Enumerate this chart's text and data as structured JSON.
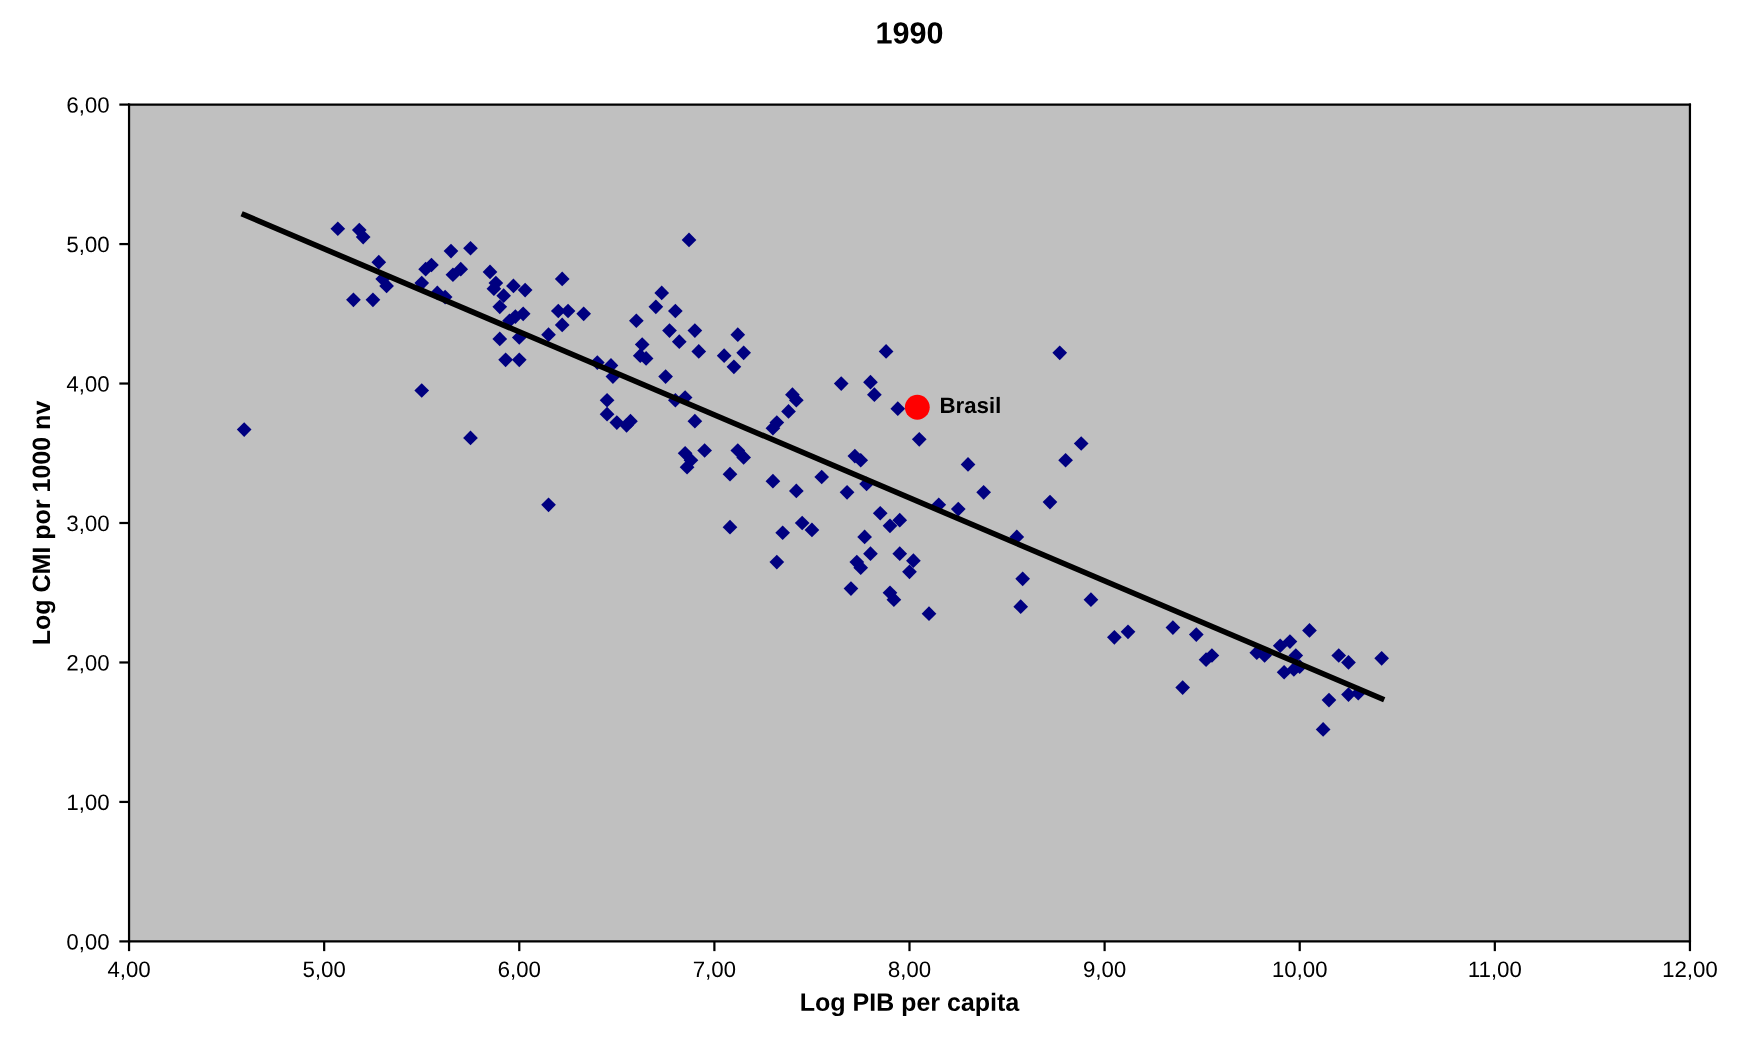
{
  "chart_data": {
    "type": "scatter",
    "title": "1990",
    "xlabel": "Log PIB per capita",
    "ylabel": "Log CMI por 1000 nv",
    "xlim": [
      4,
      12
    ],
    "ylim": [
      0,
      6
    ],
    "xticks": [
      {
        "value": 4,
        "label": "4,00"
      },
      {
        "value": 5,
        "label": "5,00"
      },
      {
        "value": 6,
        "label": "6,00"
      },
      {
        "value": 7,
        "label": "7,00"
      },
      {
        "value": 8,
        "label": "8,00"
      },
      {
        "value": 9,
        "label": "9,00"
      },
      {
        "value": 10,
        "label": "10,00"
      },
      {
        "value": 11,
        "label": "11,00"
      },
      {
        "value": 12,
        "label": "12,00"
      }
    ],
    "yticks": [
      {
        "value": 0,
        "label": "0,00"
      },
      {
        "value": 1,
        "label": "1,00"
      },
      {
        "value": 2,
        "label": "2,00"
      },
      {
        "value": 3,
        "label": "3,00"
      },
      {
        "value": 4,
        "label": "4,00"
      },
      {
        "value": 5,
        "label": "5,00"
      },
      {
        "value": 6,
        "label": "6,00"
      }
    ],
    "grid": false,
    "legend": false,
    "series": [
      {
        "marker": "diamond",
        "color": "#000080",
        "x": [
          4.59,
          5.07,
          5.15,
          5.18,
          5.2,
          5.25,
          5.28,
          5.3,
          5.32,
          5.5,
          5.5,
          5.52,
          5.55,
          5.58,
          5.62,
          5.65,
          5.66,
          5.7,
          5.75,
          5.75,
          5.85,
          5.87,
          5.88,
          5.9,
          5.9,
          5.92,
          5.93,
          5.95,
          5.97,
          5.98,
          6.0,
          6.0,
          6.02,
          6.03,
          6.15,
          6.15,
          6.2,
          6.22,
          6.22,
          6.25,
          6.33,
          6.4,
          6.45,
          6.45,
          6.47,
          6.48,
          6.5,
          6.55,
          6.57,
          6.6,
          6.62,
          6.63,
          6.65,
          6.7,
          6.73,
          6.75,
          6.77,
          6.8,
          6.8,
          6.82,
          6.85,
          6.85,
          6.86,
          6.87,
          6.88,
          6.9,
          6.9,
          6.92,
          6.95,
          7.05,
          7.08,
          7.08,
          7.1,
          7.12,
          7.12,
          7.15,
          7.15,
          7.3,
          7.3,
          7.32,
          7.32,
          7.35,
          7.38,
          7.4,
          7.42,
          7.42,
          7.45,
          7.5,
          7.55,
          7.65,
          7.68,
          7.7,
          7.72,
          7.73,
          7.75,
          7.75,
          7.77,
          7.78,
          7.8,
          7.82,
          7.85,
          7.88,
          7.9,
          7.9,
          7.92,
          7.95,
          7.95,
          8.0,
          8.02,
          8.05,
          8.1,
          8.15,
          8.25,
          8.3,
          8.38,
          8.55,
          8.57,
          8.58,
          8.72,
          8.77,
          8.8,
          8.88,
          8.93,
          9.05,
          9.12,
          9.35,
          9.4,
          9.47,
          9.52,
          9.55,
          9.78,
          9.82,
          9.9,
          9.92,
          9.95,
          9.97,
          9.98,
          10.0,
          10.05,
          10.12,
          10.15,
          10.2,
          10.25,
          10.25,
          10.3,
          10.42,
          7.8,
          7.94
        ],
        "values": [
          3.67,
          5.11,
          4.6,
          5.1,
          5.05,
          4.6,
          4.87,
          4.75,
          4.7,
          3.95,
          4.72,
          4.82,
          4.85,
          4.65,
          4.62,
          4.95,
          4.78,
          4.82,
          4.97,
          3.61,
          4.8,
          4.68,
          4.72,
          4.55,
          4.32,
          4.63,
          4.17,
          4.45,
          4.7,
          4.48,
          4.17,
          4.33,
          4.5,
          4.67,
          3.13,
          4.35,
          4.52,
          4.75,
          4.42,
          4.52,
          4.5,
          4.15,
          3.78,
          3.88,
          4.13,
          4.05,
          3.72,
          3.7,
          3.73,
          4.45,
          4.2,
          4.28,
          4.18,
          4.55,
          4.65,
          4.05,
          4.38,
          3.88,
          4.52,
          4.3,
          3.9,
          3.5,
          3.4,
          5.03,
          3.45,
          4.38,
          3.73,
          4.23,
          3.52,
          4.2,
          3.35,
          2.97,
          4.12,
          4.35,
          3.52,
          4.22,
          3.47,
          3.3,
          3.68,
          3.72,
          2.72,
          2.93,
          3.8,
          3.92,
          3.88,
          3.23,
          3.0,
          2.95,
          3.33,
          4.0,
          3.22,
          2.53,
          3.48,
          2.72,
          2.68,
          3.45,
          2.9,
          3.28,
          2.78,
          3.92,
          3.07,
          4.23,
          2.98,
          2.5,
          2.45,
          2.78,
          3.02,
          2.65,
          2.73,
          3.6,
          2.35,
          3.13,
          3.1,
          3.42,
          3.22,
          2.9,
          2.4,
          2.6,
          3.15,
          4.22,
          3.45,
          3.57,
          2.45,
          2.18,
          2.22,
          2.25,
          1.82,
          2.2,
          2.02,
          2.05,
          2.07,
          2.05,
          2.12,
          1.93,
          2.15,
          1.95,
          2.05,
          1.97,
          2.23,
          1.52,
          1.73,
          2.05,
          2.0,
          1.77,
          1.78,
          2.03,
          4.01,
          3.82
        ]
      },
      {
        "type": "line",
        "marker": "none",
        "line_style": "solid",
        "color": "#000000",
        "x": [
          4.59,
          10.42
        ],
        "values": [
          5.21,
          1.74
        ]
      },
      {
        "marker": "circle",
        "name": "Brasil",
        "color": "#ff0000",
        "x": [
          8.04
        ],
        "values": [
          3.83
        ]
      }
    ]
  }
}
